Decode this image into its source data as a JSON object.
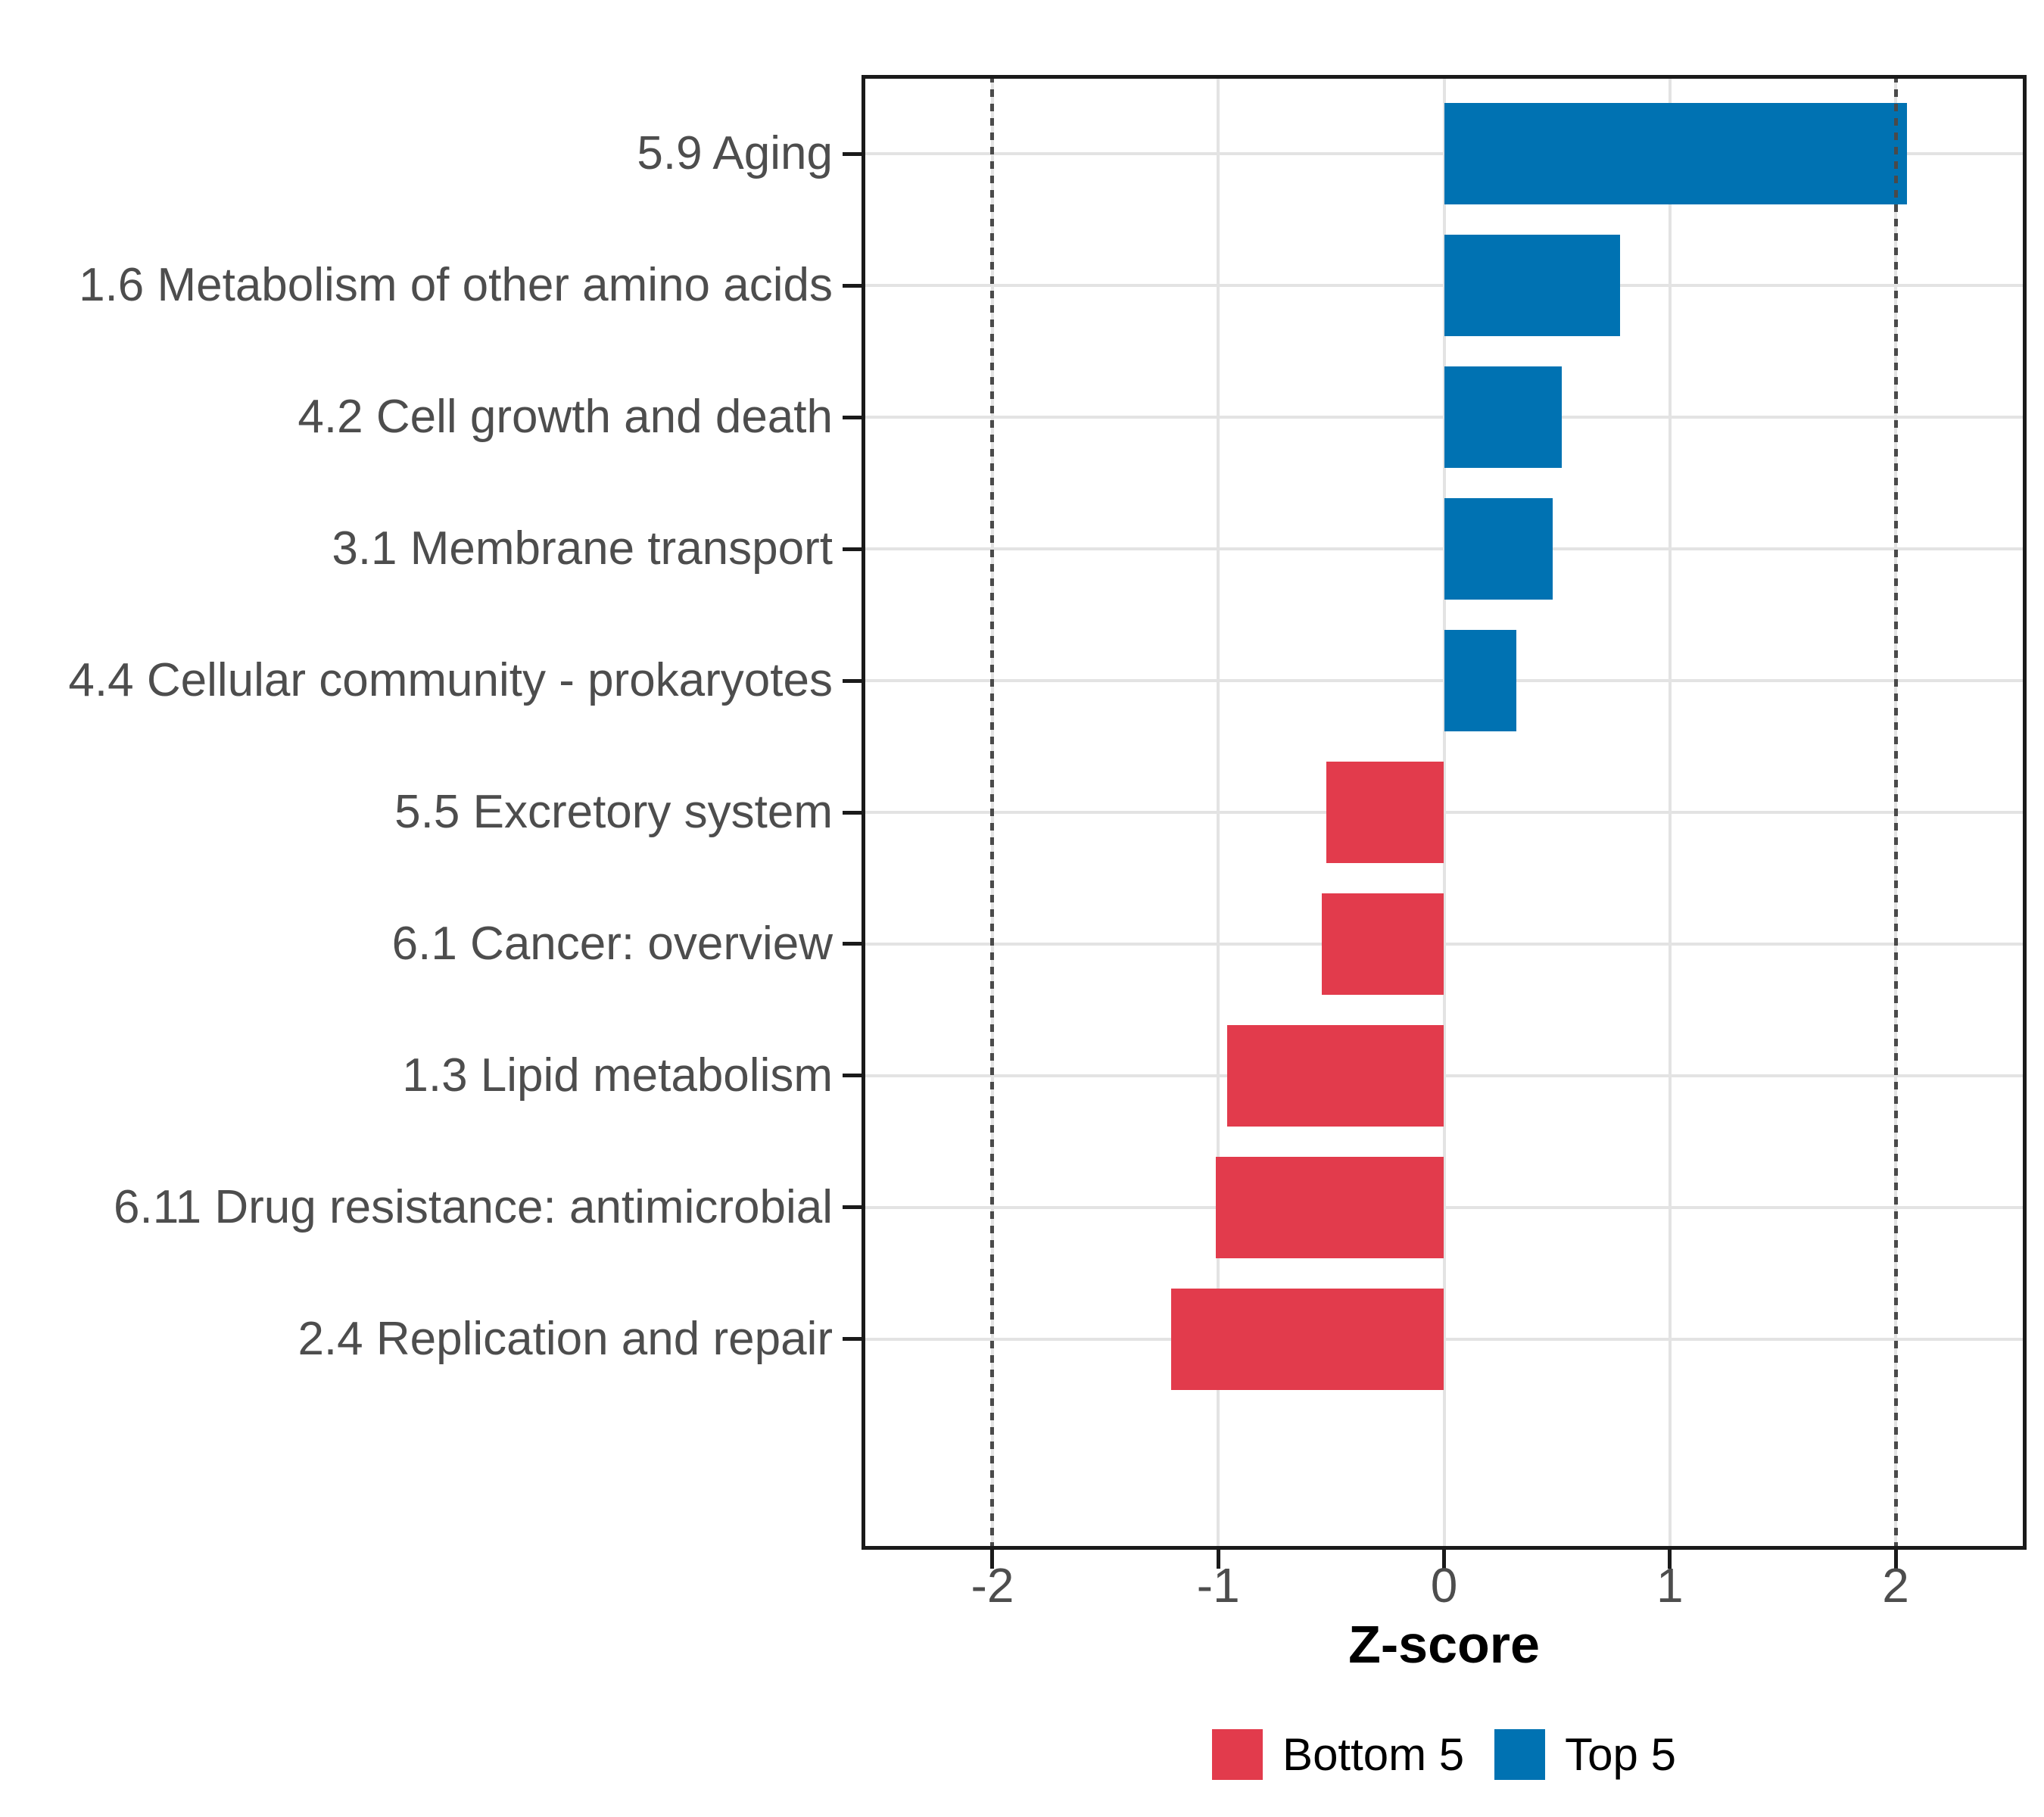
{
  "chart_data": {
    "type": "bar",
    "orientation": "horizontal",
    "xlabel": "Z-score",
    "ylabel": "",
    "xlim": [
      -2.58,
      2.58
    ],
    "x_ticks": [
      -2,
      -1,
      0,
      1,
      2
    ],
    "x_tick_labels": [
      "-2",
      "-1",
      "0",
      "1",
      "2"
    ],
    "reference_lines": [
      -2,
      2
    ],
    "grid": true,
    "legend_position": "bottom",
    "categories": [
      "5.9 Aging",
      "1.6 Metabolism of other amino acids",
      "4.2 Cell growth and death",
      "3.1 Membrane transport",
      "4.4 Cellular community - prokaryotes",
      "5.5 Excretory system",
      "6.1 Cancer: overview",
      "1.3 Lipid metabolism",
      "6.11 Drug resistance: antimicrobial",
      "2.4 Replication and repair"
    ],
    "values": [
      2.05,
      0.78,
      0.52,
      0.48,
      0.32,
      -0.52,
      -0.54,
      -0.96,
      -1.01,
      -1.21
    ],
    "groups": [
      "Top 5",
      "Top 5",
      "Top 5",
      "Top 5",
      "Top 5",
      "Bottom 5",
      "Bottom 5",
      "Bottom 5",
      "Bottom 5",
      "Bottom 5"
    ],
    "legend": [
      {
        "label": "Bottom 5",
        "color": "#E23B4C"
      },
      {
        "label": "Top 5",
        "color": "#0072B2"
      }
    ]
  },
  "colors": {
    "top5_blue": "#0072B2",
    "bottom5_red": "#E23B4C",
    "gridline": "#E3E3E3",
    "reference_line": "#4A4A4A",
    "axis_text": "#4D4D4D",
    "axis_line": "#1A1A1A",
    "background": "#FFFFFF"
  }
}
